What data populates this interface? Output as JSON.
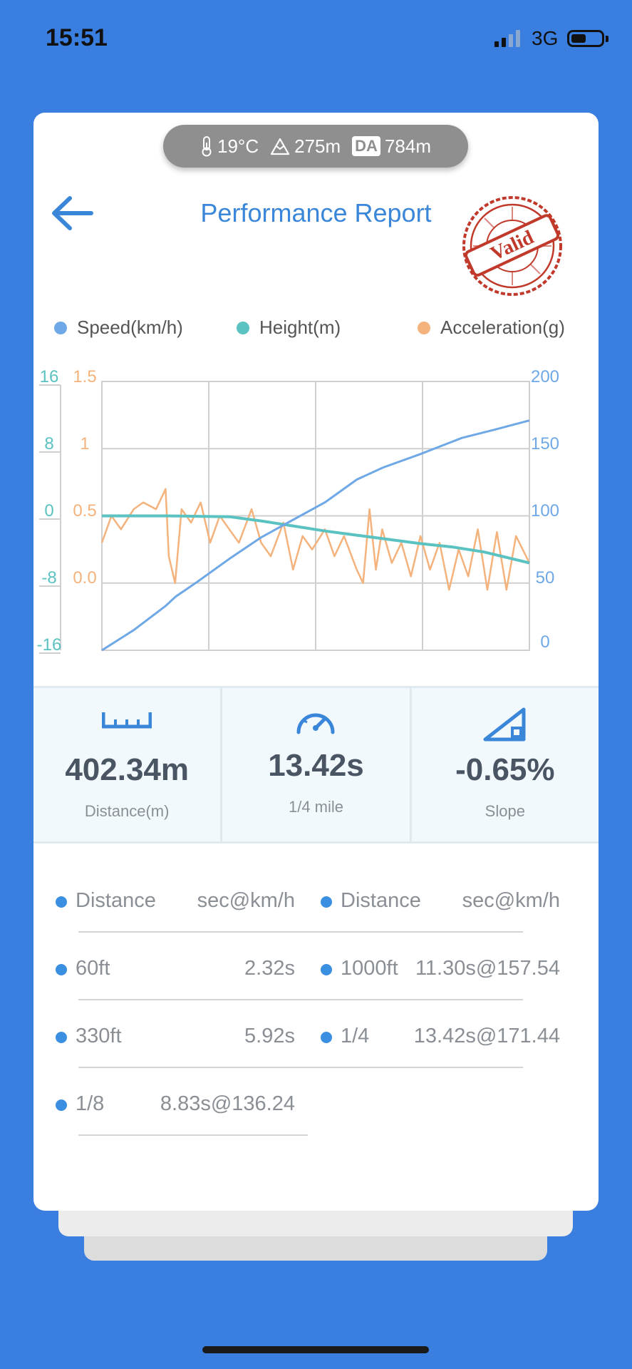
{
  "status_bar": {
    "time": "15:51",
    "network": "3G"
  },
  "weather": {
    "temperature": "19°C",
    "altitude": "275m",
    "da_label": "DA",
    "density_altitude": "784m"
  },
  "header": {
    "title": "Performance Report",
    "stamp_text": "Valid"
  },
  "legend": [
    {
      "label": "Speed(km/h)",
      "color": "#6fa8e6"
    },
    {
      "label": "Height(m)",
      "color": "#5ac2c0"
    },
    {
      "label": "Acceleration(g)",
      "color": "#f4b27c"
    }
  ],
  "chart_data": {
    "type": "line",
    "axes": {
      "height_ticks": [
        "16",
        "8",
        "0",
        "-8",
        "-16"
      ],
      "accel_ticks": [
        "1.5",
        "1",
        "0.5",
        "0.0"
      ],
      "speed_ticks": [
        "200",
        "150",
        "100",
        "50",
        "0"
      ],
      "height_range": [
        -16,
        16
      ],
      "accel_range": [
        -0.5,
        1.5
      ],
      "speed_range": [
        0,
        200
      ]
    },
    "grid": true,
    "t_range": [
      0,
      13.42
    ],
    "series": [
      {
        "name": "Speed(km/h)",
        "color": "#6fa8e6",
        "t": [
          0,
          1,
          2,
          2.32,
          3,
          4,
          5,
          5.92,
          7,
          8,
          8.83,
          10,
          11.3,
          12.3,
          13.42
        ],
        "values": [
          0,
          15,
          33,
          40,
          51,
          68,
          84,
          96,
          110,
          127,
          136,
          146,
          158,
          164,
          171
        ]
      },
      {
        "name": "Height(m)",
        "color": "#5ac2c0",
        "t": [
          0,
          2,
          4,
          5,
          6,
          7,
          8,
          9,
          10,
          11,
          12,
          13.42
        ],
        "values": [
          0,
          0,
          -0.1,
          -0.6,
          -1.2,
          -1.8,
          -2.3,
          -2.8,
          -3.3,
          -3.7,
          -4.3,
          -5.6
        ]
      },
      {
        "name": "Acceleration(g)",
        "color": "#f4b27c",
        "t": [
          0,
          0.3,
          0.6,
          1,
          1.3,
          1.7,
          2,
          2.1,
          2.3,
          2.5,
          2.8,
          3.1,
          3.4,
          3.7,
          4,
          4.3,
          4.7,
          5,
          5.3,
          5.7,
          6,
          6.3,
          6.6,
          7,
          7.3,
          7.6,
          8,
          8.2,
          8.4,
          8.6,
          8.8,
          9.1,
          9.4,
          9.7,
          10,
          10.3,
          10.6,
          10.9,
          11.2,
          11.5,
          11.8,
          12.1,
          12.4,
          12.7,
          13,
          13.42
        ],
        "values": [
          0.3,
          0.5,
          0.4,
          0.55,
          0.6,
          0.55,
          0.7,
          0.2,
          0.0,
          0.55,
          0.45,
          0.6,
          0.3,
          0.5,
          0.4,
          0.3,
          0.55,
          0.3,
          0.2,
          0.45,
          0.1,
          0.35,
          0.25,
          0.4,
          0.2,
          0.35,
          0.1,
          0.0,
          0.55,
          0.1,
          0.4,
          0.15,
          0.3,
          0.05,
          0.35,
          0.1,
          0.3,
          -0.05,
          0.25,
          0.05,
          0.4,
          -0.05,
          0.38,
          -0.05,
          0.35,
          0.15
        ]
      }
    ]
  },
  "stats": [
    {
      "value": "402.34m",
      "label": "Distance(m)",
      "icon": "ruler-icon"
    },
    {
      "value": "13.42s",
      "label": "1/4 mile",
      "icon": "speedometer-icon"
    },
    {
      "value": "-0.65%",
      "label": "Slope",
      "icon": "slope-icon"
    }
  ],
  "results_table": {
    "header": {
      "col1": "Distance",
      "col2": "sec@km/h"
    },
    "left": [
      {
        "distance": "60ft",
        "time": "2.32s"
      },
      {
        "distance": "330ft",
        "time": "5.92s"
      },
      {
        "distance": "1/8",
        "time": "8.83s@136.24"
      }
    ],
    "right": [
      {
        "distance": "1000ft",
        "time": "11.30s@157.54"
      },
      {
        "distance": "1/4",
        "time": "13.42s@171.44"
      }
    ]
  },
  "colors": {
    "background": "#3a7fe0",
    "accent": "#3a86d8",
    "stamp": "#c0392b"
  }
}
